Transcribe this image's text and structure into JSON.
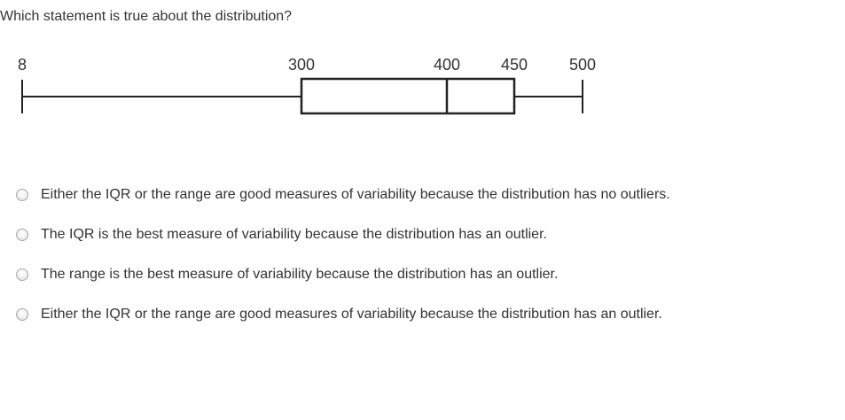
{
  "question": {
    "text": "Which statement is true about the distribution?"
  },
  "chart_data": {
    "type": "boxplot",
    "min": 8,
    "q1": 300,
    "median": 400,
    "q3": 450,
    "max": 500,
    "tick_labels": [
      "8",
      "300",
      "400",
      "450",
      "500"
    ],
    "stroke_color": "#222222"
  },
  "options": [
    {
      "label": "Either the IQR or the range are good measures of variability because the distribution has no outliers.",
      "selected": false
    },
    {
      "label": "The IQR is the best measure of variability because the distribution has an outlier.",
      "selected": false
    },
    {
      "label": "The range is the best measure of variability because the distribution has an outlier.",
      "selected": false
    },
    {
      "label": "Either the IQR or the range are good measures of variability because the distribution has an outlier.",
      "selected": false
    }
  ]
}
